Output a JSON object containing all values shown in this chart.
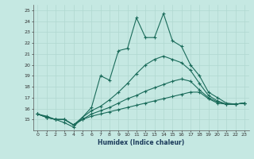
{
  "xlabel": "Humidex (Indice chaleur)",
  "x": [
    0,
    1,
    2,
    3,
    4,
    5,
    6,
    7,
    8,
    9,
    10,
    11,
    12,
    13,
    14,
    15,
    16,
    17,
    18,
    19,
    20,
    21,
    22,
    23
  ],
  "line1": [
    15.5,
    15.3,
    15.0,
    15.0,
    14.5,
    15.0,
    15.3,
    15.5,
    15.7,
    15.9,
    16.1,
    16.3,
    16.5,
    16.7,
    16.9,
    17.1,
    17.3,
    17.5,
    17.5,
    16.9,
    16.5,
    16.4,
    16.4,
    16.5
  ],
  "line2": [
    15.5,
    15.2,
    15.0,
    15.0,
    14.5,
    15.0,
    15.5,
    15.8,
    16.1,
    16.5,
    16.9,
    17.2,
    17.6,
    17.9,
    18.2,
    18.5,
    18.7,
    18.5,
    17.7,
    17.0,
    16.6,
    16.4,
    16.4,
    16.5
  ],
  "line3": [
    15.5,
    15.2,
    15.0,
    15.0,
    14.5,
    15.2,
    15.8,
    16.2,
    16.8,
    17.5,
    18.3,
    19.2,
    20.0,
    20.5,
    20.8,
    20.5,
    20.2,
    19.5,
    18.3,
    17.2,
    16.7,
    16.4,
    16.4,
    16.5
  ],
  "line4": [
    15.5,
    15.2,
    15.0,
    14.7,
    14.3,
    15.2,
    16.1,
    19.0,
    18.6,
    21.3,
    21.5,
    24.3,
    22.5,
    22.5,
    24.7,
    22.2,
    21.7,
    20.0,
    19.0,
    17.5,
    17.0,
    16.5,
    16.4,
    16.5
  ],
  "ylim_min": 14,
  "ylim_max": 25.5,
  "ytick_min": 15,
  "ytick_max": 25,
  "bg_color": "#c5e8e2",
  "line_color": "#1a6b5a",
  "grid_color": "#b0d8d0"
}
